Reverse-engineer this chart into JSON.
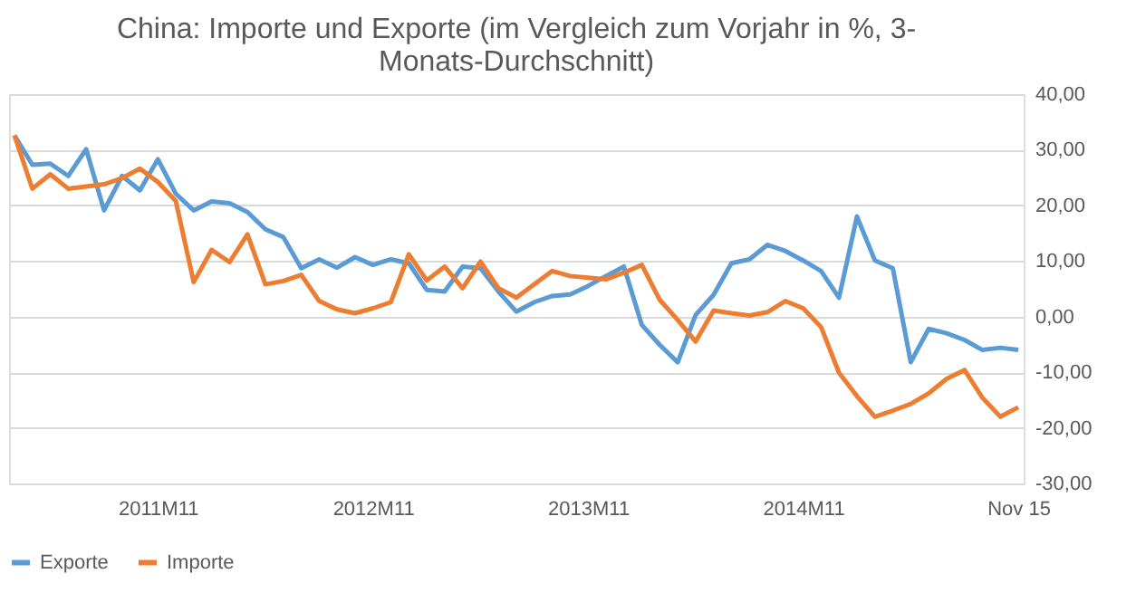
{
  "chart_data": {
    "type": "line",
    "title": [
      "China: Importe und Exporte (im Vergleich zum Vorjahr in %, 3-",
      "Monats-Durchschnitt)"
    ],
    "categories": [
      null,
      null,
      null,
      null,
      null,
      null,
      null,
      null,
      "2011M11",
      null,
      null,
      null,
      null,
      null,
      null,
      null,
      null,
      null,
      null,
      null,
      "2012M11",
      null,
      null,
      null,
      null,
      null,
      null,
      null,
      null,
      null,
      null,
      null,
      "2013M11",
      null,
      null,
      null,
      null,
      null,
      null,
      null,
      null,
      null,
      null,
      null,
      "2014M11",
      null,
      null,
      null,
      null,
      null,
      null,
      null,
      null,
      null,
      null,
      null,
      "Nov 15"
    ],
    "series": [
      {
        "name": "Exporte",
        "color": "#5b9bd5",
        "values": [
          32.6,
          27.3,
          27.5,
          25.3,
          30.1,
          19.1,
          25.3,
          22.7,
          28.3,
          22.1,
          19.1,
          20.7,
          20.4,
          18.8,
          15.7,
          14.3,
          8.7,
          10.3,
          8.8,
          10.7,
          9.3,
          10.3,
          9.6,
          4.8,
          4.5,
          9.0,
          8.7,
          4.5,
          0.9,
          2.6,
          3.7,
          4.0,
          5.5,
          7.3,
          9.0,
          -1.5,
          -5.1,
          -8.2,
          0.3,
          3.9,
          9.6,
          10.3,
          12.9,
          11.8,
          10.1,
          8.2,
          3.4,
          18.0,
          10.1,
          8.7,
          -8.2,
          -2.2,
          -3.0,
          -4.2,
          -6.0,
          -5.6,
          -6.0
        ]
      },
      {
        "name": "Importe",
        "color": "#ed7d31",
        "values": [
          32.6,
          23.0,
          25.6,
          23.0,
          23.4,
          23.8,
          24.9,
          26.6,
          24.2,
          20.8,
          6.2,
          12.0,
          9.8,
          14.8,
          5.8,
          6.4,
          7.5,
          2.8,
          1.3,
          0.6,
          1.5,
          2.6,
          11.2,
          6.5,
          9.0,
          5.1,
          9.9,
          5.1,
          3.4,
          5.8,
          8.2,
          7.3,
          7.0,
          6.7,
          7.9,
          9.3,
          3.0,
          -0.6,
          -4.5,
          1.1,
          0.6,
          0.2,
          0.8,
          2.8,
          1.5,
          -1.9,
          -10.1,
          -14.3,
          -18.0,
          -16.9,
          -15.7,
          -13.8,
          -11.2,
          -9.6,
          -14.6,
          -18.0,
          -16.3
        ]
      }
    ],
    "ylim": [
      -30,
      40
    ],
    "yticks": [
      {
        "value": -30,
        "label": "-30,00"
      },
      {
        "value": -20,
        "label": "-20,00"
      },
      {
        "value": -10,
        "label": "-10,00"
      },
      {
        "value": 0,
        "label": "0,00"
      },
      {
        "value": 10,
        "label": "10,00"
      },
      {
        "value": 20,
        "label": "20,00"
      },
      {
        "value": 30,
        "label": "30,00"
      },
      {
        "value": 40,
        "label": "40,00"
      }
    ],
    "grid": "y",
    "legend": "bottom",
    "marker": "none",
    "line_style": "solid"
  }
}
